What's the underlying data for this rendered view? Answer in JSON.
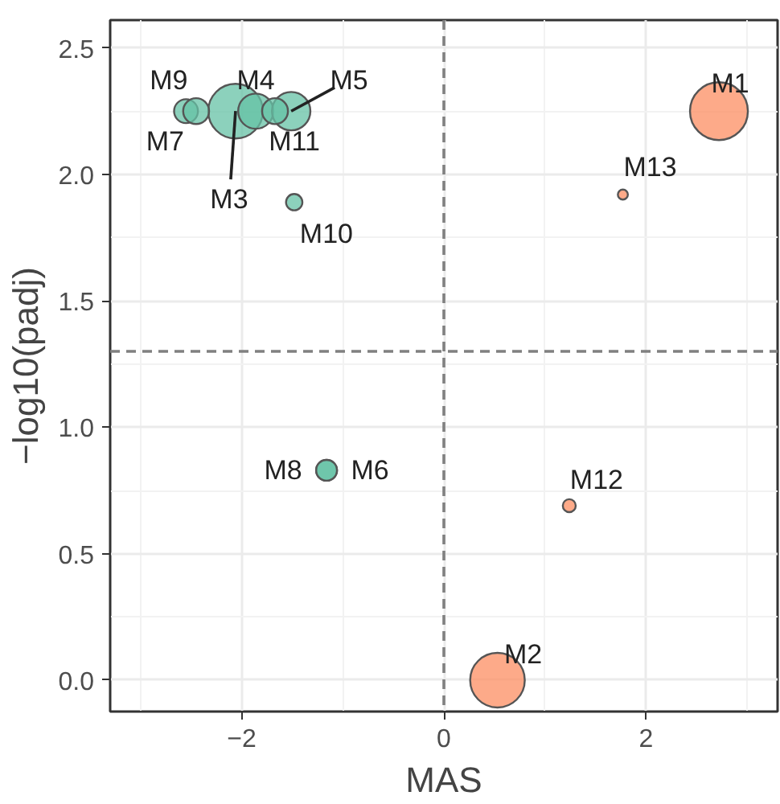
{
  "chart_data": {
    "type": "bubble",
    "xlabel": "MAS",
    "ylabel": "−log10(padj)",
    "series": [
      {
        "color": "#66c2a5",
        "x": [
          -2.06,
          -1.86,
          -1.51,
          -1.16,
          -2.55,
          -1.16,
          -2.45,
          -1.48,
          -1.67
        ],
        "values": [
          2.25,
          2.25,
          2.25,
          0.83,
          2.25,
          0.83,
          2.25,
          1.89,
          2.25
        ],
        "sizes": [
          0.89,
          0.37,
          0.44,
          0.13,
          0.17,
          0.13,
          0.2,
          0.08,
          0.2
        ]
      },
      {
        "color": "#fc8d62",
        "x": [
          2.72,
          0.53,
          1.24,
          1.77
        ],
        "values": [
          2.25,
          0.0,
          0.69,
          1.92
        ],
        "sizes": [
          1,
          0.89,
          0.05,
          0.03
        ]
      }
    ],
    "annotations": [
      {
        "text": "M3",
        "x": -2.06,
        "y": 2.25
      },
      {
        "text": "M4",
        "x": -1.86,
        "y": 2.25
      },
      {
        "text": "M5",
        "x": -1.51,
        "y": 2.25
      },
      {
        "text": "M6",
        "x": -1.16,
        "y": 0.83
      },
      {
        "text": "M7",
        "x": -2.55,
        "y": 2.25
      },
      {
        "text": "M8",
        "x": -1.16,
        "y": 0.83
      },
      {
        "text": "M9",
        "x": -2.45,
        "y": 2.25
      },
      {
        "text": "M10",
        "x": -1.48,
        "y": 1.89
      },
      {
        "text": "M11",
        "x": -1.67,
        "y": 2.25
      },
      {
        "text": "M1",
        "x": 2.72,
        "y": 2.25
      },
      {
        "text": "M2",
        "x": 0.53,
        "y": 0.0
      },
      {
        "text": "M12",
        "x": 1.24,
        "y": 0.69
      },
      {
        "text": "M13",
        "x": 1.77,
        "y": 1.92
      }
    ],
    "ref_lines": [
      {
        "axis": "x",
        "value": 0,
        "line_style": "dashed",
        "color": "#808080"
      },
      {
        "axis": "y",
        "value": 1.3,
        "line_style": "dashed",
        "color": "#808080"
      }
    ],
    "xlim": [
      -3.3,
      3.3
    ],
    "ylim": [
      -0.124,
      2.61
    ],
    "xticks": [
      {
        "value": -2,
        "label": "−2"
      },
      0,
      2
    ],
    "yticks": [
      {
        "value": 0,
        "label": "0.0"
      },
      {
        "value": 0.5,
        "label": "0.5"
      },
      {
        "value": 1,
        "label": "1.0"
      },
      {
        "value": 1.5,
        "label": "1.5"
      },
      {
        "value": 2,
        "label": "2.0"
      },
      {
        "value": 2.5,
        "label": "2.5"
      }
    ],
    "grid": true
  }
}
